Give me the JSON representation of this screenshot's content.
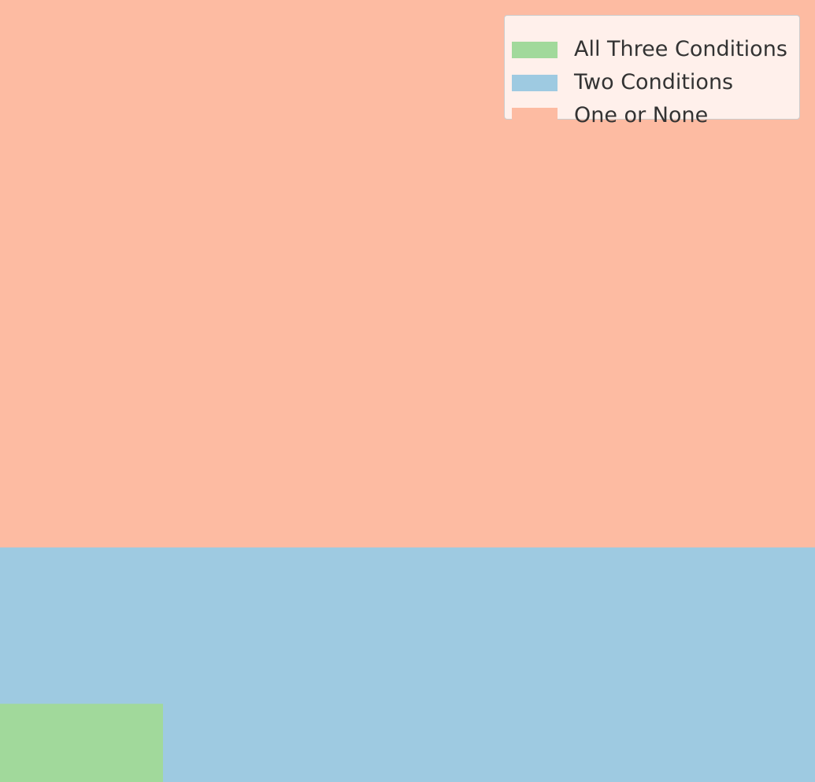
{
  "chart_data": {
    "type": "area",
    "xlim": [
      0,
      1
    ],
    "ylim": [
      0,
      1
    ],
    "grid": false,
    "legend_position": "top-right",
    "series": [
      {
        "name": "All Three Conditions",
        "color": "#a1d99b",
        "region": {
          "x": [
            0,
            0.2
          ],
          "y": [
            0,
            0.1
          ]
        }
      },
      {
        "name": "Two Conditions",
        "color": "#9ecae1",
        "region": {
          "x": [
            0,
            1
          ],
          "y": [
            0,
            0.3
          ]
        }
      },
      {
        "name": "One or None",
        "color": "#fdbba2",
        "region": {
          "x": [
            0,
            1
          ],
          "y": [
            0,
            1
          ]
        }
      }
    ]
  },
  "legend": {
    "items": [
      {
        "label": "All Three Conditions",
        "color": "#a1d99b"
      },
      {
        "label": "Two Conditions",
        "color": "#9ecae1"
      },
      {
        "label": "One or None",
        "color": "#fdbba2"
      }
    ]
  }
}
